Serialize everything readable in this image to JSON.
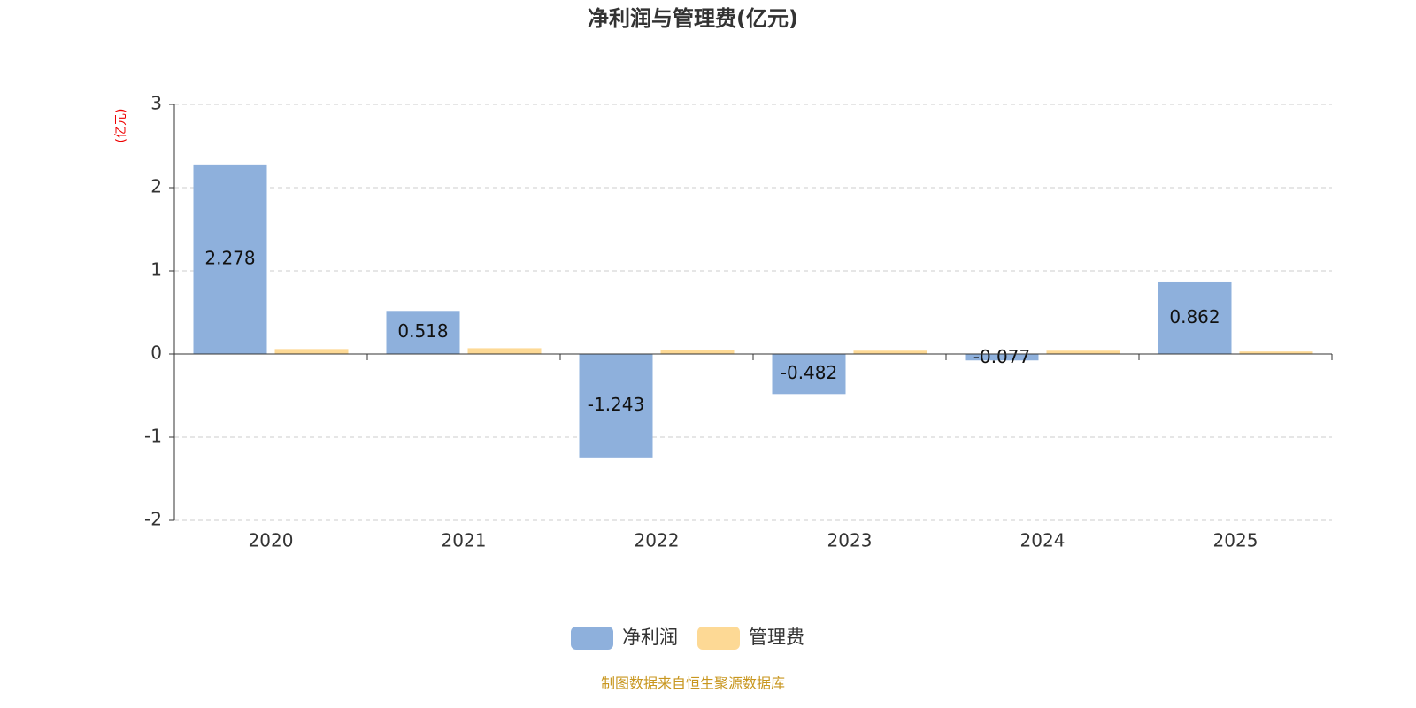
{
  "chart_data": {
    "type": "bar",
    "title": "净利润与管理费(亿元)",
    "y_label": "(亿元)",
    "categories": [
      "2020",
      "2021",
      "2022",
      "2023",
      "2024",
      "2025"
    ],
    "series": [
      {
        "name": "净利润",
        "color": "#8eb0dc",
        "values": [
          2.278,
          0.518,
          -1.243,
          -0.482,
          -0.077,
          0.862
        ],
        "show_labels": true
      },
      {
        "name": "管理费",
        "color": "#fdd995",
        "values": [
          0.06,
          0.07,
          0.05,
          0.04,
          0.04,
          0.03
        ],
        "show_labels": false
      }
    ],
    "ylim": [
      -2,
      3
    ],
    "yticks": [
      -2,
      -1,
      0,
      1,
      2,
      3
    ],
    "grid": true,
    "legend": "bottom",
    "source": "制图数据来自恒生聚源数据库"
  }
}
